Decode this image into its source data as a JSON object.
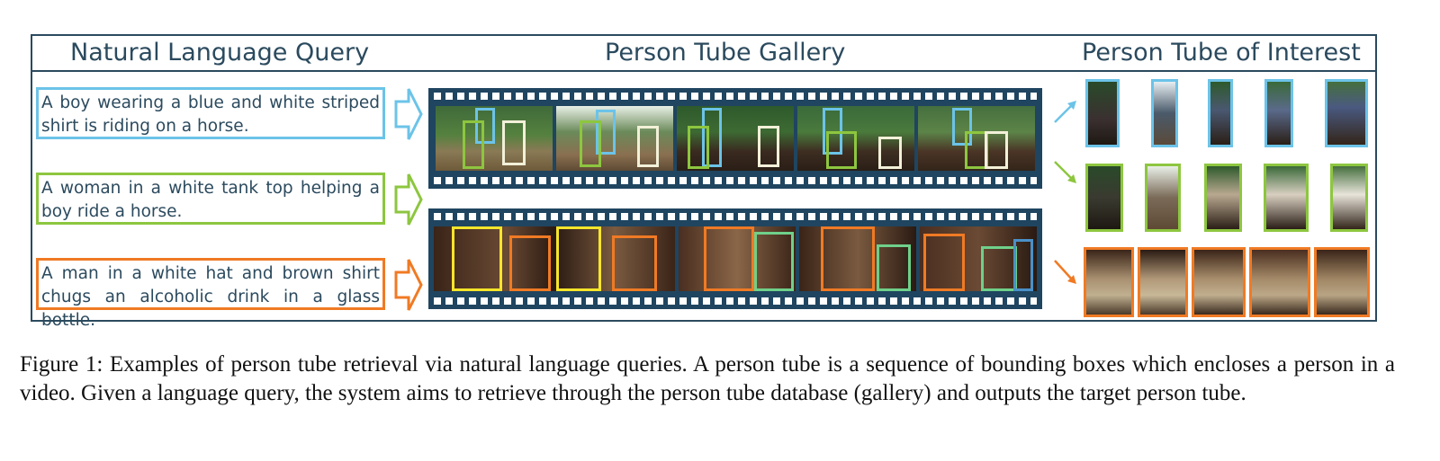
{
  "headers": {
    "query": "Natural Language Query",
    "gallery": "Person Tube Gallery",
    "interest": "Person Tube of Interest"
  },
  "queries": [
    {
      "text": "A boy wearing a blue and white striped shirt is riding on a horse.",
      "color": "#6cc3e8"
    },
    {
      "text": "A woman in a white tank top helping a boy ride a horse.",
      "color": "#8dc63f"
    },
    {
      "text": "A man in a white hat and brown shirt chugs an alcoholic drink in a glass bottle.",
      "color": "#f07a24"
    }
  ],
  "colors": {
    "frame_border": "#2b4a5e",
    "filmstrip": "#1f4560",
    "bbox_blue": "#6cc3e8",
    "bbox_green": "#8dc63f",
    "bbox_white": "#f2f0d8",
    "bbox_yellow": "#f5e52a",
    "bbox_orange": "#f07a24",
    "bbox_teal_green": "#6fd08a"
  },
  "caption": "Figure 1: Examples of person tube retrieval via natural language queries. A person tube is a sequence of bounding boxes which encloses a person in a video. Given a language query, the system aims to retrieve through the person tube database (gallery) and outputs the target person tube."
}
